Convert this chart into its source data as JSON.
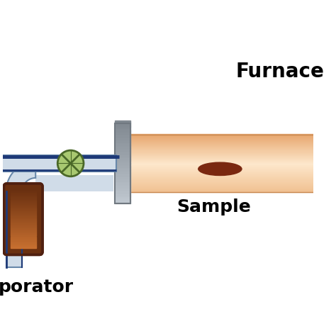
{
  "bg_color": "#ffffff",
  "furnace_tube_top_color": "#f0c090",
  "furnace_tube_mid_color": "#fde8cc",
  "furnace_tube_bot_color": "#e8a870",
  "tube_border_color": "#c88850",
  "flange_color_top": "#c0c8d0",
  "flange_color_bot": "#808890",
  "flange_border_color": "#707880",
  "pipe_blue_color": "#1e3a78",
  "pipe_tube_fill": "#d0dce8",
  "pipe_tube_border": "#6888aa",
  "evaporator_color_top": "#c87030",
  "evaporator_color_bot": "#6a3010",
  "evaporator_border_color": "#502010",
  "valve_circle_color": "#a8c870",
  "valve_border_color": "#4a6828",
  "valve_x_color": "#4a6828",
  "sample_color": "#7a2810",
  "text_color": "#000000",
  "furnace_label": "Furnace",
  "sample_label": "Sample",
  "evaporator_label": "porator",
  "furnace_fontsize": 20,
  "label_fontsize": 18
}
